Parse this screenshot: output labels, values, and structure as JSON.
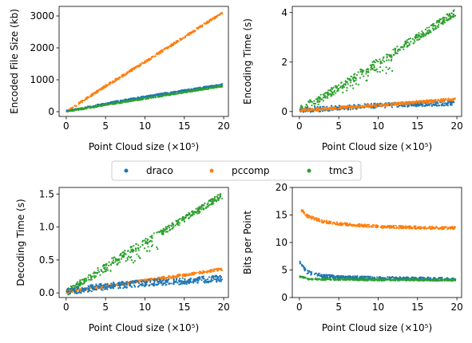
{
  "colors": {
    "draco": "#1f77b4",
    "pccomp": "#ff7f0e",
    "tmc3": "#2ca02c"
  },
  "legend": {
    "placement": "center, between rows",
    "entries": [
      "draco",
      "pccomp",
      "tmc3"
    ]
  },
  "chart_data": [
    {
      "type": "scatter",
      "title": "",
      "xlabel": "Point Cloud size (×10⁵)",
      "ylabel": "Encoded File Size (kb)",
      "xlim": [
        -0.9,
        20.6
      ],
      "ylim": [
        -150,
        3300
      ],
      "xticks": [
        0,
        5,
        10,
        15,
        20
      ],
      "yticks": [
        0,
        1000,
        2000,
        3000
      ],
      "grid": false,
      "series": [
        {
          "name": "pccomp",
          "x": [
            0.2,
            5,
            10,
            15,
            19.8
          ],
          "y": [
            30,
            800,
            1560,
            2340,
            3090
          ],
          "spread": 35,
          "bands": 1
        },
        {
          "name": "draco",
          "x": [
            0.2,
            5,
            10,
            15,
            19.8
          ],
          "y": [
            20,
            250,
            470,
            660,
            850
          ],
          "spread": 25,
          "bands": 1
        },
        {
          "name": "tmc3",
          "x": [
            0.2,
            5,
            10,
            15,
            19.8
          ],
          "y": [
            15,
            210,
            410,
            610,
            800
          ],
          "spread": 20,
          "bands": 1
        }
      ]
    },
    {
      "type": "scatter",
      "title": "",
      "xlabel": "Point Cloud size (×10⁵)",
      "ylabel": "Encoding Time (s)",
      "xlim": [
        -0.9,
        20.6
      ],
      "ylim": [
        -0.2,
        4.25
      ],
      "xticks": [
        0,
        5,
        10,
        15,
        20
      ],
      "yticks": [
        0,
        2,
        4
      ],
      "grid": false,
      "series": [
        {
          "name": "tmc3",
          "x": [
            0.2,
            5,
            10,
            15,
            19.8
          ],
          "y": [
            0.1,
            1.0,
            2.0,
            3.0,
            4.0
          ],
          "spread": 0.15,
          "bands": 2,
          "band_y2": [
            0.05,
            0.55,
            1.3,
            1.3,
            1.3
          ]
        },
        {
          "name": "draco",
          "x": [
            0.2,
            5,
            10,
            15,
            19.8
          ],
          "y": [
            0.05,
            0.15,
            0.25,
            0.3,
            0.35
          ],
          "spread": 0.1,
          "bands": 1
        },
        {
          "name": "pccomp",
          "x": [
            0.2,
            5,
            10,
            15,
            19.8
          ],
          "y": [
            0.05,
            0.15,
            0.25,
            0.38,
            0.5
          ],
          "spread": 0.05,
          "bands": 1
        }
      ]
    },
    {
      "type": "scatter",
      "title": "",
      "xlabel": "Point Cloud size (×10⁵)",
      "ylabel": "Decoding Time (s)",
      "xlim": [
        -0.9,
        20.6
      ],
      "ylim": [
        -0.07,
        1.6
      ],
      "xticks": [
        0,
        5,
        10,
        15,
        20
      ],
      "yticks": [
        0.0,
        0.5,
        1.0,
        1.5
      ],
      "grid": false,
      "series": [
        {
          "name": "tmc3",
          "x": [
            0.2,
            5,
            10,
            15,
            19.8
          ],
          "y": [
            0.02,
            0.42,
            0.78,
            1.12,
            1.48
          ],
          "spread": 0.05,
          "bands": 2,
          "band_y2": [
            0.02,
            0.25,
            0.45,
            0.45,
            0.45
          ]
        },
        {
          "name": "pccomp",
          "x": [
            0.2,
            5,
            10,
            15,
            19.8
          ],
          "y": [
            0.02,
            0.1,
            0.19,
            0.27,
            0.36
          ],
          "spread": 0.02,
          "bands": 1
        },
        {
          "name": "draco",
          "x": [
            0.2,
            5,
            10,
            15,
            19.8
          ],
          "y": [
            0.02,
            0.1,
            0.15,
            0.18,
            0.22
          ],
          "spread": 0.05,
          "bands": 1
        }
      ]
    },
    {
      "type": "scatter",
      "title": "",
      "xlabel": "Point Cloud size (×10⁵)",
      "ylabel": "Bits per Point",
      "xlim": [
        -0.9,
        20.6
      ],
      "ylim": [
        0,
        20
      ],
      "xticks": [
        0,
        5,
        10,
        15,
        20
      ],
      "yticks": [
        0,
        5,
        10,
        15,
        20
      ],
      "grid": false,
      "series": [
        {
          "name": "pccomp",
          "x": [
            0.05,
            1,
            3,
            5,
            10,
            15,
            19.8
          ],
          "y": [
            16.2,
            14.8,
            13.8,
            13.4,
            12.9,
            12.7,
            12.6
          ],
          "spread": 0.25,
          "bands": 1
        },
        {
          "name": "draco",
          "x": [
            0.05,
            1,
            3,
            5,
            10,
            15,
            19.8
          ],
          "y": [
            6.5,
            4.6,
            3.9,
            3.7,
            3.5,
            3.4,
            3.3
          ],
          "spread": 0.3,
          "bands": 1
        },
        {
          "name": "tmc3",
          "x": [
            0.05,
            1,
            3,
            5,
            10,
            15,
            19.8
          ],
          "y": [
            3.8,
            3.4,
            3.3,
            3.3,
            3.2,
            3.2,
            3.2
          ],
          "spread": 0.15,
          "bands": 1
        }
      ]
    }
  ]
}
